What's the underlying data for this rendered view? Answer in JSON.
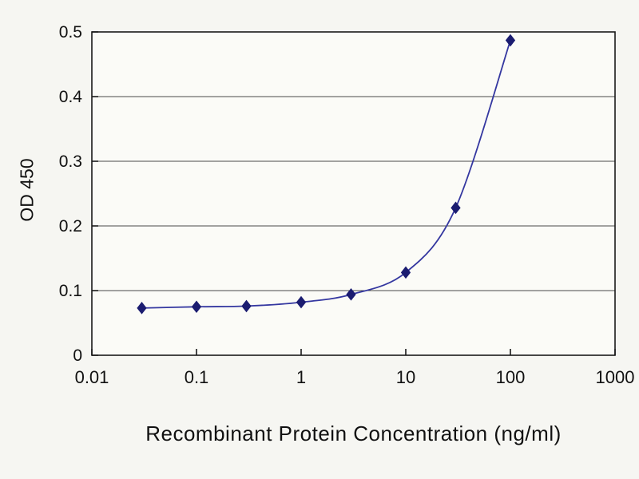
{
  "chart_data": {
    "type": "line",
    "title": "",
    "xlabel": "Recombinant Protein Concentration (ng/ml)",
    "ylabel": "OD 450",
    "x_scale": "log",
    "xlim": [
      0.01,
      1000
    ],
    "ylim": [
      0,
      0.5
    ],
    "x_ticks": [
      0.01,
      0.1,
      1,
      10,
      100,
      1000
    ],
    "x_tick_labels": [
      "0.01",
      "0.1",
      "1",
      "10",
      "100",
      "1000"
    ],
    "y_ticks": [
      0,
      0.1,
      0.2,
      0.3,
      0.4,
      0.5
    ],
    "y_tick_labels": [
      "0",
      "0.1",
      "0.2",
      "0.3",
      "0.4",
      "0.5"
    ],
    "grid": "horizontal",
    "legend": "none",
    "series": [
      {
        "name": "OD450",
        "marker": "diamond",
        "x": [
          0.03,
          0.1,
          0.3,
          1,
          3,
          10,
          30,
          100
        ],
        "y": [
          0.073,
          0.075,
          0.076,
          0.082,
          0.094,
          0.128,
          0.228,
          0.487
        ]
      }
    ],
    "colors": {
      "line": "#3437a0",
      "marker": "#1b1c70",
      "grid": "#4a4a4a",
      "axis": "#1a1a1a",
      "plot_background": "#fbfbf7",
      "page_background": "#f6f6f2"
    }
  }
}
